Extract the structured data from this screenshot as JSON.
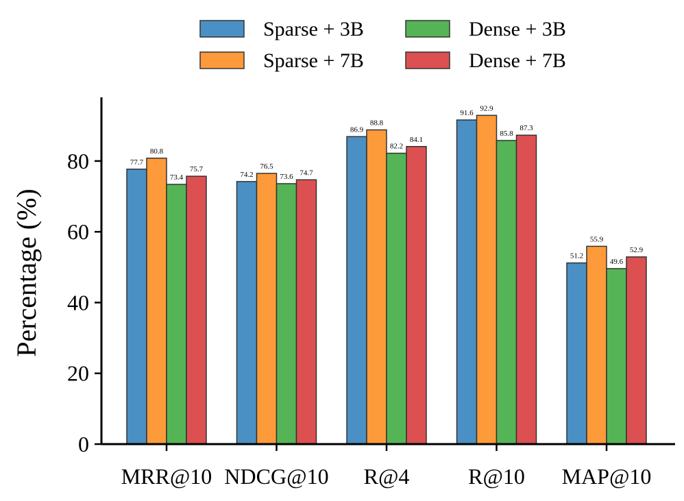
{
  "chart_data": {
    "type": "bar",
    "title": "",
    "xlabel": "",
    "ylabel": "Percentage (%)",
    "ylim": [
      0,
      98
    ],
    "yticks": [
      0,
      20,
      40,
      60,
      80
    ],
    "categories": [
      "MRR@10",
      "NDCG@10",
      "R@4",
      "R@10",
      "MAP@10"
    ],
    "series": [
      {
        "name": "Sparse + 3B",
        "color": "#4a90c4",
        "values": [
          77.7,
          74.2,
          86.9,
          91.6,
          51.2
        ]
      },
      {
        "name": "Sparse + 7B",
        "color": "#fd9a3a",
        "values": [
          80.8,
          76.5,
          88.8,
          92.9,
          55.9
        ]
      },
      {
        "name": "Dense + 3B",
        "color": "#55b455",
        "values": [
          73.4,
          73.6,
          82.2,
          85.8,
          49.6
        ]
      },
      {
        "name": "Dense + 7B",
        "color": "#dc5052",
        "values": [
          75.7,
          74.7,
          84.1,
          87.3,
          52.9
        ]
      }
    ],
    "legend_position": "top-center",
    "grid": false
  }
}
